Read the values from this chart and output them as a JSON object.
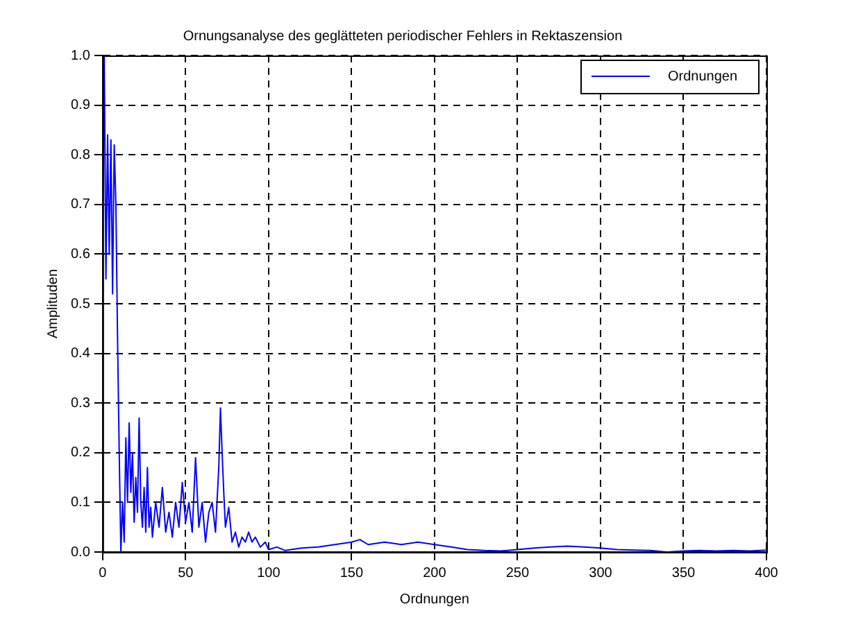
{
  "chart_data": {
    "type": "line",
    "title": "Ornungsanalyse des geglätteten periodischer Fehlers in Rektaszension",
    "xlabel": "Ordnungen",
    "ylabel": "Amplituden",
    "series": [
      {
        "name": "Ordnungen",
        "color": "#0000ff",
        "x": [
          0,
          1,
          2,
          3,
          4,
          5,
          6,
          7,
          8,
          9,
          10,
          11,
          12,
          13,
          14,
          15,
          16,
          17,
          18,
          19,
          20,
          21,
          22,
          23,
          24,
          25,
          26,
          27,
          28,
          29,
          30,
          32,
          34,
          36,
          38,
          40,
          42,
          44,
          46,
          48,
          50,
          52,
          54,
          56,
          58,
          60,
          62,
          64,
          66,
          68,
          70,
          71,
          72,
          73,
          74,
          76,
          78,
          80,
          82,
          84,
          86,
          88,
          90,
          92,
          95,
          98,
          100,
          105,
          110,
          120,
          130,
          140,
          150,
          155,
          160,
          170,
          180,
          190,
          200,
          210,
          220,
          230,
          240,
          250,
          260,
          270,
          280,
          290,
          300,
          310,
          320,
          330,
          340,
          350,
          360,
          370,
          380,
          390,
          400
        ],
        "values": [
          0.65,
          1.0,
          0.55,
          0.84,
          0.6,
          0.83,
          0.52,
          0.82,
          0.7,
          0.43,
          0.2,
          0.0,
          0.1,
          0.02,
          0.23,
          0.1,
          0.26,
          0.12,
          0.2,
          0.06,
          0.15,
          0.08,
          0.27,
          0.1,
          0.05,
          0.13,
          0.04,
          0.17,
          0.05,
          0.09,
          0.03,
          0.1,
          0.05,
          0.13,
          0.04,
          0.08,
          0.03,
          0.1,
          0.05,
          0.14,
          0.06,
          0.1,
          0.04,
          0.19,
          0.05,
          0.1,
          0.02,
          0.08,
          0.1,
          0.04,
          0.17,
          0.29,
          0.2,
          0.12,
          0.05,
          0.09,
          0.02,
          0.04,
          0.01,
          0.03,
          0.02,
          0.04,
          0.02,
          0.03,
          0.01,
          0.02,
          0.005,
          0.01,
          0.003,
          0.008,
          0.01,
          0.015,
          0.02,
          0.025,
          0.015,
          0.02,
          0.015,
          0.02,
          0.015,
          0.01,
          0.005,
          0.003,
          0.002,
          0.005,
          0.008,
          0.01,
          0.012,
          0.01,
          0.008,
          0.005,
          0.004,
          0.003,
          0,
          0.002,
          0.003,
          0.002,
          0.003,
          0.002,
          0.004
        ]
      }
    ],
    "xlim": [
      0,
      400
    ],
    "xticks": [
      0,
      50,
      100,
      150,
      200,
      250,
      300,
      350,
      400
    ],
    "ylim": [
      0,
      1
    ],
    "yticks": [
      {
        "value": 0,
        "label": "0.0"
      },
      0.1,
      0.2,
      0.3,
      0.4,
      0.5,
      0.6,
      0.7,
      0.8,
      0.9,
      {
        "value": 1,
        "label": "1.0"
      }
    ],
    "grid": true,
    "legend": "top right",
    "line_style": "solid",
    "marker": "none"
  }
}
